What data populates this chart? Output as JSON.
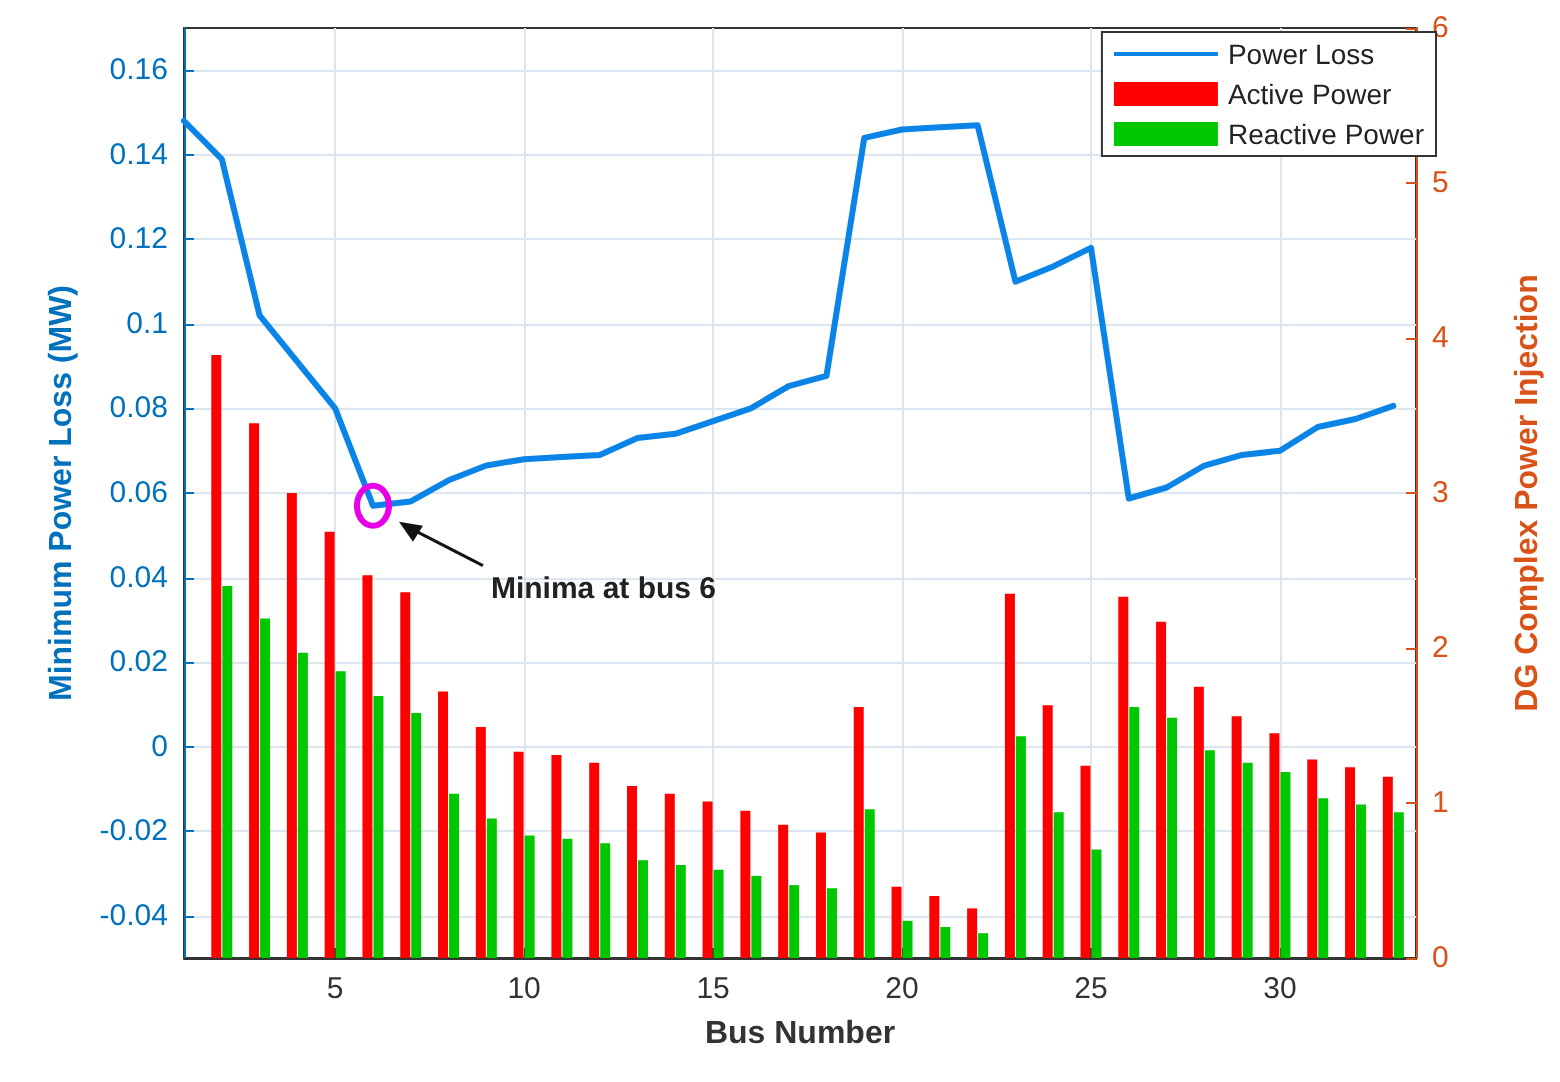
{
  "chart_data": {
    "type": "bar",
    "xlabel": "Bus Number",
    "ylabel": "Minimum Power Loss (MW)",
    "y2label": "DG Complex Power Injection",
    "xlim": [
      1,
      33.6
    ],
    "xticks": [
      5,
      10,
      15,
      20,
      25,
      30
    ],
    "ylim": [
      -0.05,
      0.17
    ],
    "yticks": [
      -0.04,
      -0.02,
      0,
      0.02,
      0.04,
      0.06,
      0.08,
      0.1,
      0.12,
      0.14,
      0.16
    ],
    "y2lim": [
      0,
      6
    ],
    "y2ticks": [
      0,
      1,
      2,
      3,
      4,
      5,
      6
    ],
    "grid": true,
    "legend": "top right",
    "marker": "none",
    "line_style": "solid",
    "series": [
      {
        "name": "Power Loss",
        "type": "line",
        "color": "#0a84e6",
        "x": [
          1,
          2,
          3,
          4,
          5,
          6,
          7,
          8,
          9,
          10,
          11,
          12,
          13,
          14,
          15,
          16,
          17,
          18,
          19,
          20,
          21,
          22,
          23,
          24,
          25,
          26,
          27,
          28,
          29,
          30,
          31,
          32,
          33
        ],
        "values": [
          0.148,
          0.139,
          0.102,
          0.091,
          0.08,
          0.057,
          0.058,
          0.063,
          0.0665,
          0.068,
          0.0685,
          0.069,
          0.073,
          0.074,
          0.077,
          0.08,
          0.0853,
          0.0877,
          0.144,
          0.146,
          0.1465,
          0.147,
          0.11,
          0.1136,
          0.118,
          0.0587,
          0.0613,
          0.0665,
          0.069,
          0.07,
          0.0756,
          0.0775,
          0.0806
        ]
      },
      {
        "name": "Active Power",
        "axis": "y2",
        "color": "#ff0000",
        "x": [
          2,
          3,
          4,
          5,
          6,
          7,
          8,
          9,
          10,
          11,
          12,
          13,
          14,
          15,
          16,
          17,
          18,
          19,
          20,
          21,
          22,
          23,
          24,
          25,
          26,
          27,
          28,
          29,
          30,
          31,
          32,
          33
        ],
        "values": [
          3.89,
          3.45,
          3.0,
          2.75,
          2.47,
          2.36,
          1.72,
          1.49,
          1.33,
          1.31,
          1.26,
          1.11,
          1.06,
          1.01,
          0.95,
          0.86,
          0.81,
          1.62,
          0.46,
          0.4,
          0.32,
          2.35,
          1.63,
          1.24,
          2.33,
          2.17,
          1.75,
          1.56,
          1.45,
          1.28,
          1.23,
          1.17
        ]
      },
      {
        "name": "Reactive Power",
        "axis": "y2",
        "color": "#00c800",
        "x": [
          2,
          3,
          4,
          5,
          6,
          7,
          8,
          9,
          10,
          11,
          12,
          13,
          14,
          15,
          16,
          17,
          18,
          19,
          20,
          21,
          22,
          23,
          24,
          25,
          26,
          27,
          28,
          29,
          30,
          31,
          32,
          33
        ],
        "values": [
          2.4,
          2.19,
          1.97,
          1.85,
          1.69,
          1.58,
          1.06,
          0.9,
          0.79,
          0.77,
          0.74,
          0.63,
          0.6,
          0.57,
          0.53,
          0.47,
          0.45,
          0.96,
          0.24,
          0.2,
          0.16,
          1.43,
          0.94,
          0.7,
          1.62,
          1.55,
          1.34,
          1.26,
          1.2,
          1.03,
          0.99,
          0.94
        ]
      }
    ],
    "annotations": [
      "Minima at bus 6"
    ]
  }
}
